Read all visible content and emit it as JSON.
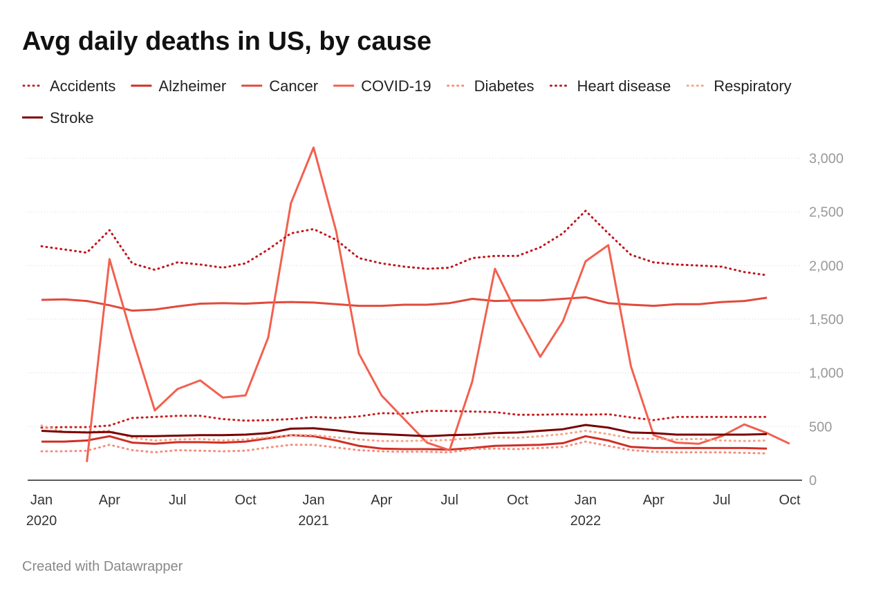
{
  "chart_data": {
    "type": "line",
    "title": "Avg daily deaths in US, by cause",
    "footer": "Created with Datawrapper",
    "x": [
      "2020-01",
      "2020-02",
      "2020-03",
      "2020-04",
      "2020-05",
      "2020-06",
      "2020-07",
      "2020-08",
      "2020-09",
      "2020-10",
      "2020-11",
      "2020-12",
      "2021-01",
      "2021-02",
      "2021-03",
      "2021-04",
      "2021-05",
      "2021-06",
      "2021-07",
      "2021-08",
      "2021-09",
      "2021-10",
      "2021-11",
      "2021-12",
      "2022-01",
      "2022-02",
      "2022-03",
      "2022-04",
      "2022-05",
      "2022-06",
      "2022-07",
      "2022-08",
      "2022-09",
      "2022-10"
    ],
    "xticks": [
      {
        "value": "2020-01",
        "label": "Jan 2020"
      },
      {
        "value": "2020-04",
        "label": "Apr"
      },
      {
        "value": "2020-07",
        "label": "Jul"
      },
      {
        "value": "2020-10",
        "label": "Oct"
      },
      {
        "value": "2021-01",
        "label": "Jan 2021"
      },
      {
        "value": "2021-04",
        "label": "Apr"
      },
      {
        "value": "2021-07",
        "label": "Jul"
      },
      {
        "value": "2021-10",
        "label": "Oct"
      },
      {
        "value": "2022-01",
        "label": "Jan 2022"
      },
      {
        "value": "2022-04",
        "label": "Apr"
      },
      {
        "value": "2022-07",
        "label": "Jul"
      },
      {
        "value": "2022-10",
        "label": "Oct"
      }
    ],
    "ylim": [
      0,
      3000
    ],
    "yticks": [
      0,
      500,
      {
        "value": 1000,
        "label": "1,000"
      },
      {
        "value": 1500,
        "label": "1,500"
      },
      {
        "value": 2000,
        "label": "2,000"
      },
      {
        "value": 2500,
        "label": "2,500"
      },
      {
        "value": 3000,
        "label": "3,000"
      }
    ],
    "grid": true,
    "series": [
      {
        "name": "Accidents",
        "color": "#c71e1d",
        "dash": "dotted",
        "values": [
          490,
          495,
          495,
          510,
          580,
          590,
          600,
          600,
          570,
          555,
          560,
          570,
          590,
          580,
          595,
          625,
          620,
          645,
          645,
          640,
          635,
          610,
          610,
          615,
          610,
          615,
          585,
          560,
          590,
          590,
          590,
          590,
          590,
          null
        ]
      },
      {
        "name": "Alzheimer",
        "color": "#cf2f25",
        "dash": "solid",
        "values": [
          360,
          360,
          370,
          410,
          350,
          340,
          355,
          355,
          350,
          360,
          390,
          420,
          410,
          370,
          320,
          295,
          290,
          290,
          285,
          300,
          320,
          325,
          330,
          345,
          410,
          370,
          310,
          300,
          300,
          300,
          300,
          300,
          295,
          null
        ]
      },
      {
        "name": "Cancer",
        "color": "#e04a3c",
        "dash": "solid",
        "values": [
          1680,
          1685,
          1670,
          1630,
          1580,
          1590,
          1620,
          1645,
          1650,
          1645,
          1655,
          1660,
          1655,
          1640,
          1625,
          1625,
          1635,
          1635,
          1650,
          1690,
          1670,
          1675,
          1675,
          1690,
          1705,
          1650,
          1635,
          1625,
          1640,
          1640,
          1660,
          1670,
          1700,
          null
        ]
      },
      {
        "name": "COVID-19",
        "color": "#f2604e",
        "dash": "solid",
        "values": [
          null,
          null,
          170,
          2060,
          1330,
          650,
          850,
          930,
          770,
          790,
          1330,
          2580,
          3100,
          2320,
          1180,
          790,
          570,
          350,
          280,
          920,
          1970,
          1540,
          1150,
          1480,
          2040,
          2190,
          1060,
          420,
          350,
          340,
          410,
          520,
          440,
          340
        ]
      },
      {
        "name": "Diabetes",
        "color": "#f58c78",
        "dash": "dotted",
        "values": [
          270,
          270,
          275,
          330,
          280,
          260,
          280,
          275,
          270,
          275,
          305,
          330,
          330,
          305,
          280,
          270,
          265,
          265,
          260,
          290,
          295,
          290,
          300,
          310,
          360,
          320,
          280,
          265,
          260,
          260,
          260,
          255,
          250,
          null
        ]
      },
      {
        "name": "Heart disease",
        "color": "#c0141b",
        "dash": "dotted",
        "values": [
          2180,
          2150,
          2120,
          2330,
          2020,
          1960,
          2030,
          2010,
          1980,
          2020,
          2150,
          2300,
          2340,
          2240,
          2070,
          2020,
          1990,
          1970,
          1980,
          2070,
          2090,
          2090,
          2170,
          2300,
          2510,
          2300,
          2100,
          2030,
          2010,
          2000,
          1990,
          1940,
          1910,
          null
        ]
      },
      {
        "name": "Respiratory",
        "color": "#f7a385",
        "dash": "dotted",
        "values": [
          510,
          450,
          450,
          460,
          395,
          370,
          380,
          385,
          370,
          380,
          400,
          420,
          420,
          400,
          380,
          365,
          365,
          370,
          375,
          395,
          400,
          395,
          410,
          430,
          460,
          430,
          390,
          385,
          380,
          385,
          370,
          365,
          370,
          null
        ]
      },
      {
        "name": "Stroke",
        "color": "#7a0000",
        "dash": "solid",
        "values": [
          460,
          450,
          445,
          450,
          410,
          410,
          415,
          420,
          420,
          425,
          440,
          480,
          485,
          465,
          440,
          430,
          420,
          410,
          420,
          425,
          440,
          445,
          460,
          475,
          515,
          490,
          445,
          440,
          425,
          425,
          425,
          425,
          430,
          null
        ]
      }
    ]
  }
}
